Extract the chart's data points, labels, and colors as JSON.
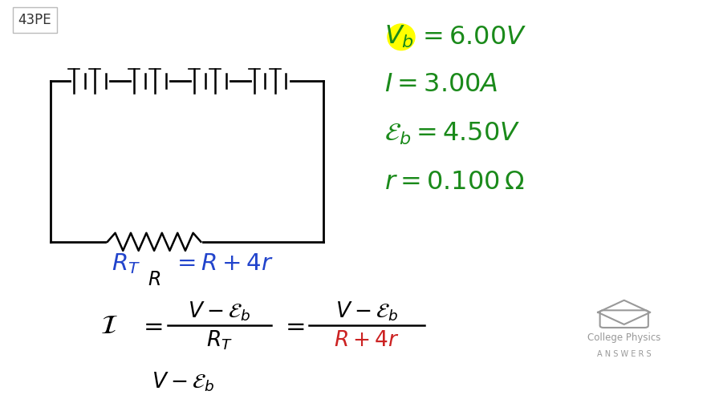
{
  "bg_color": "#ffffff",
  "label_color": "#000000",
  "green_color": "#1a8a1a",
  "blue_color": "#2244cc",
  "red_color": "#cc2222",
  "gray_color": "#999999",
  "problem_label": "43PE"
}
